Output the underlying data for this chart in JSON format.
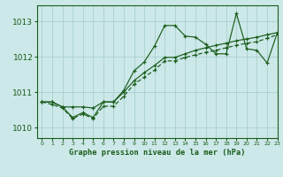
{
  "title": "Graphe pression niveau de la mer (hPa)",
  "bg_color": "#cce8e8",
  "grid_color": "#aacfcf",
  "line_color": "#1a5c1a",
  "xlim": [
    -0.5,
    23
  ],
  "ylim": [
    1009.7,
    1013.45
  ],
  "xticks": [
    0,
    1,
    2,
    3,
    4,
    5,
    6,
    7,
    8,
    9,
    10,
    11,
    12,
    13,
    14,
    15,
    16,
    17,
    18,
    19,
    20,
    21,
    22,
    23
  ],
  "yticks": [
    1010,
    1011,
    1012,
    1013
  ],
  "line_volatile": [
    1010.72,
    1010.72,
    1010.58,
    1010.28,
    1010.42,
    1010.28,
    1010.72,
    1010.72,
    1011.05,
    1011.6,
    1011.85,
    1012.3,
    1012.88,
    1012.88,
    1012.58,
    1012.55,
    1012.35,
    1012.08,
    1012.08,
    1013.22,
    1012.22,
    1012.18,
    1011.82,
    1012.68
  ],
  "line_upper": [
    1010.72,
    1010.72,
    1010.58,
    1010.58,
    1010.58,
    1010.55,
    1010.72,
    1010.72,
    1011.0,
    1011.32,
    1011.55,
    1011.75,
    1011.98,
    1011.98,
    1012.08,
    1012.18,
    1012.25,
    1012.32,
    1012.38,
    1012.45,
    1012.5,
    1012.55,
    1012.62,
    1012.68
  ],
  "line_lower": [
    1010.72,
    1010.65,
    1010.55,
    1010.25,
    1010.38,
    1010.25,
    1010.6,
    1010.6,
    1010.88,
    1011.22,
    1011.42,
    1011.62,
    1011.88,
    1011.88,
    1011.98,
    1012.05,
    1012.12,
    1012.18,
    1012.25,
    1012.32,
    1012.38,
    1012.42,
    1012.52,
    1012.62
  ]
}
